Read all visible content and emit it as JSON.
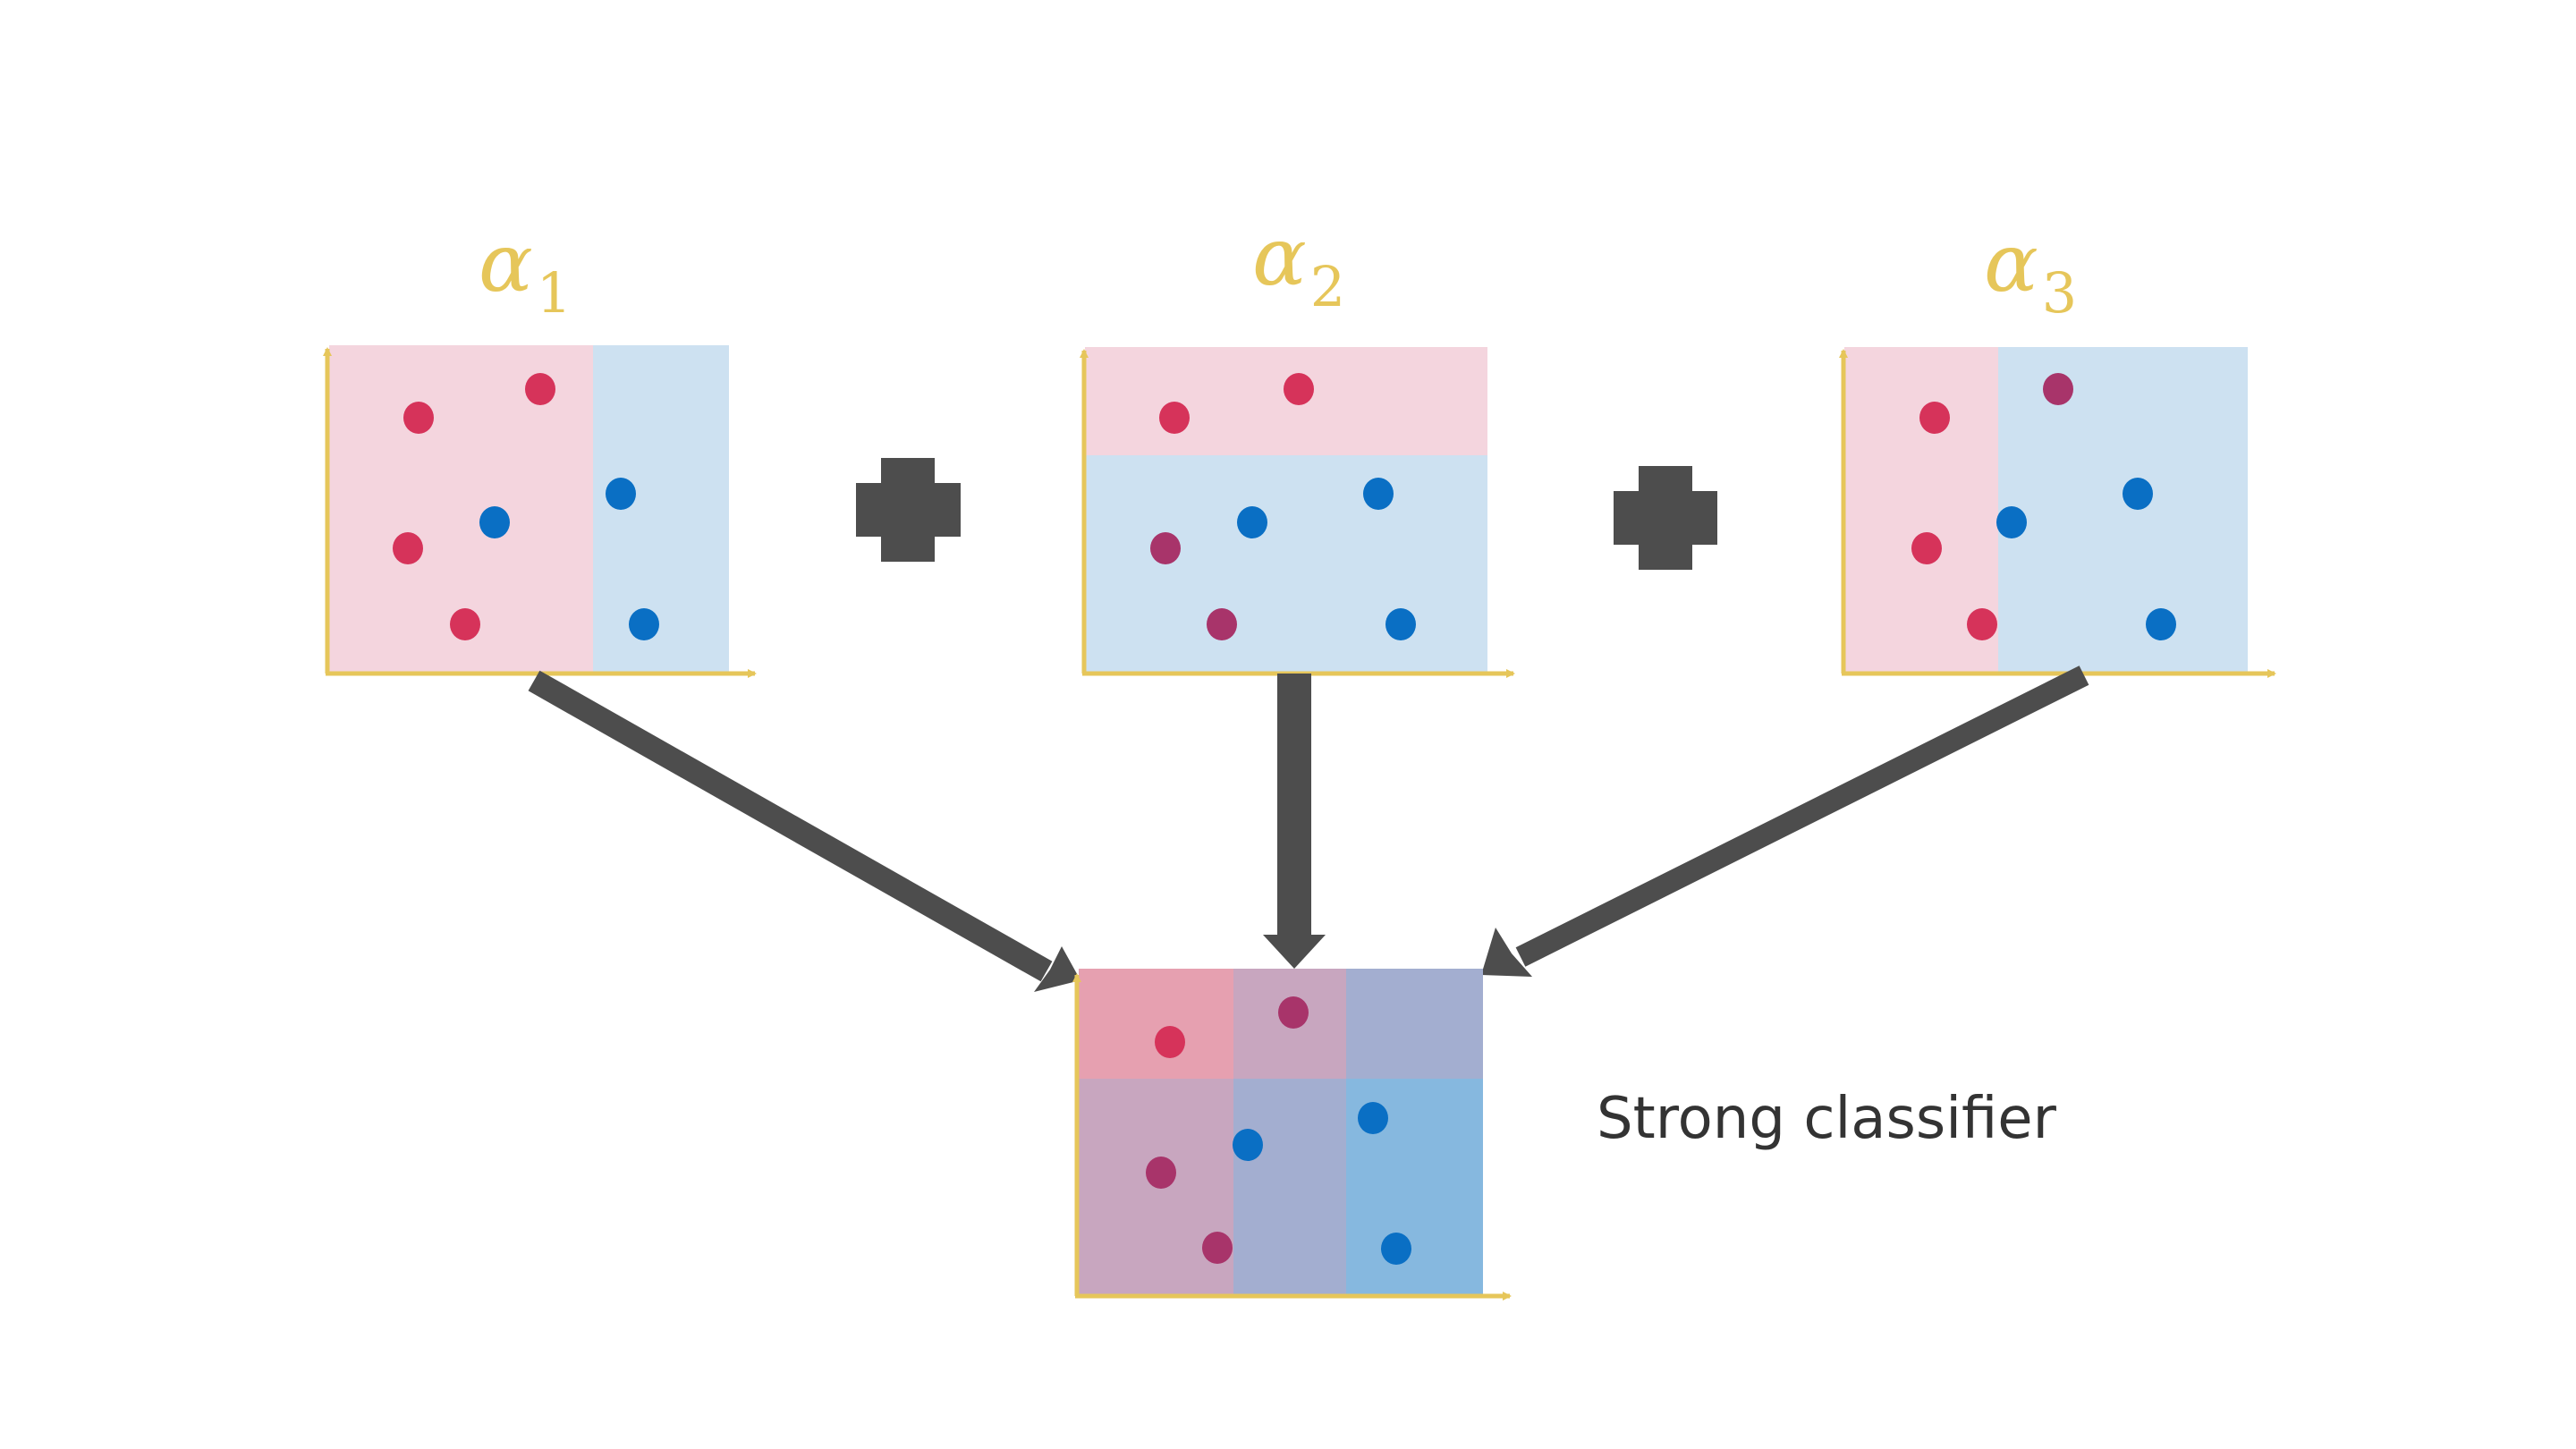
{
  "colors": {
    "pink_region": "#f4d5de",
    "blue_region": "#cde1f1",
    "axis": "#e6c65a",
    "red_dot": "#d6335a",
    "blue_dot": "#0a6fc4",
    "purple_dot": "#a8346a",
    "arrow": "#4d4d4d",
    "combined_red": "#e6a0b0",
    "combined_purple": "#c8a6bf",
    "combined_lavender": "#a3aed0",
    "combined_blue": "#86b8df"
  },
  "weak_classifiers": [
    {
      "weight_symbol": "α",
      "weight_subscript": "1",
      "split": "vertical"
    },
    {
      "weight_symbol": "α",
      "weight_subscript": "2",
      "split": "horizontal"
    },
    {
      "weight_symbol": "α",
      "weight_subscript": "3",
      "split": "vertical"
    }
  ],
  "operators": [
    "plus",
    "plus"
  ],
  "strong_classifier": {
    "label": "Strong classifier"
  }
}
